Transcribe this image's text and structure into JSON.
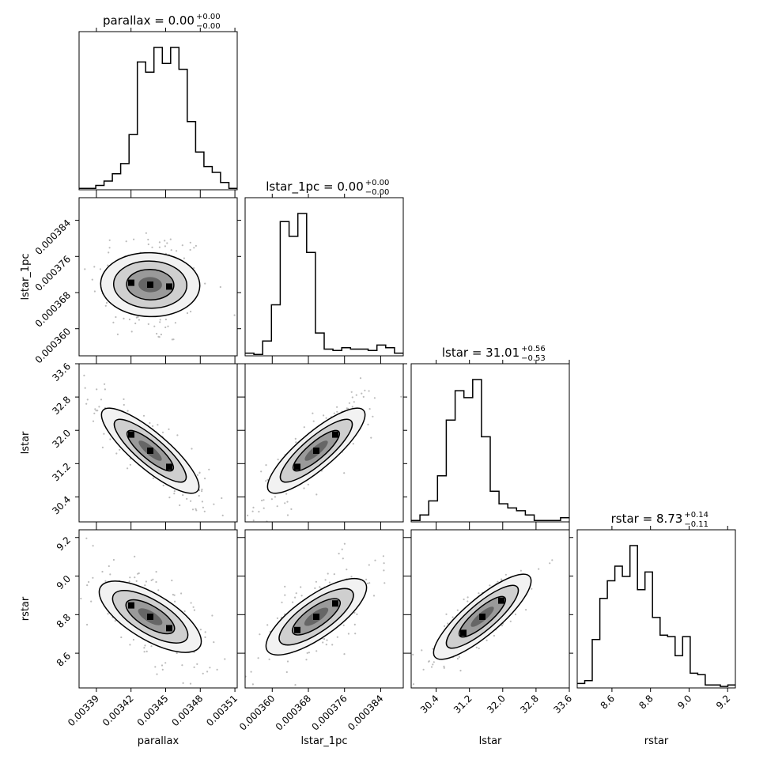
{
  "chart_data": {
    "type": "corner",
    "parameters": [
      "parallax",
      "lstar_1pc",
      "lstar",
      "rstar"
    ],
    "axis_labels": [
      "parallax",
      "lstar_1pc",
      "lstar",
      "rstar"
    ],
    "titles": [
      {
        "param": "parallax",
        "text": "parallax = 0.00",
        "plus": "+0.00",
        "minus": "−0.00"
      },
      {
        "param": "lstar_1pc",
        "text": "lstar_1pc = 0.00",
        "plus": "+0.00",
        "minus": "−0.00"
      },
      {
        "param": "lstar",
        "text": "lstar = 31.01",
        "plus": "+0.56",
        "minus": "−0.53"
      },
      {
        "param": "rstar",
        "text": "rstar = 8.73",
        "plus": "+0.14",
        "minus": "−0.11"
      }
    ],
    "ranges": [
      [
        0.003375,
        0.003512
      ],
      [
        0.000354,
        0.000389
      ],
      [
        29.8,
        33.6
      ],
      [
        8.42,
        9.24
      ]
    ],
    "ticks": [
      {
        "values": [
          0.00339,
          0.00342,
          0.00345,
          0.00348,
          0.00351
        ],
        "labels": [
          "0.00339",
          "0.00342",
          "0.00345",
          "0.00348",
          "0.00351"
        ]
      },
      {
        "values": [
          0.00036,
          0.000368,
          0.000376,
          0.000384
        ],
        "labels": [
          "0.000360",
          "0.000368",
          "0.000376",
          "0.000384"
        ]
      },
      {
        "values": [
          30.4,
          31.2,
          32.0,
          32.8,
          33.6
        ],
        "labels": [
          "30.4",
          "31.2",
          "32.0",
          "32.8",
          "33.6"
        ]
      },
      {
        "values": [
          8.6,
          8.8,
          9.0,
          9.2
        ],
        "labels": [
          "8.6",
          "8.8",
          "9.0",
          "9.2"
        ]
      }
    ],
    "histograms": [
      {
        "param": "parallax",
        "counts": [
          1,
          1,
          3,
          6,
          11,
          18,
          38,
          88,
          81,
          98,
          87,
          98,
          83,
          47,
          26,
          16,
          12,
          5,
          1
        ]
      },
      {
        "param": "lstar_1pc",
        "counts": [
          2,
          1,
          11,
          38,
          100,
          89,
          106,
          77,
          17,
          5,
          4,
          6,
          5,
          5,
          4,
          8,
          6,
          2
        ]
      },
      {
        "param": "lstar",
        "counts": [
          1,
          5,
          15,
          33,
          73,
          94,
          89,
          102,
          61,
          22,
          13,
          10,
          8,
          5,
          1,
          1,
          1,
          3
        ]
      },
      {
        "param": "rstar",
        "counts": [
          3,
          5,
          33,
          61,
          73,
          83,
          76,
          97,
          67,
          79,
          48,
          36,
          35,
          22,
          35,
          10,
          9,
          2,
          2,
          1,
          2
        ]
      }
    ],
    "scatter_pairs": [
      {
        "x": "parallax",
        "y": "lstar_1pc",
        "rho": -0.1
      },
      {
        "x": "parallax",
        "y": "lstar",
        "rho": -0.85
      },
      {
        "x": "lstar_1pc",
        "y": "lstar",
        "rho": 0.85
      },
      {
        "x": "parallax",
        "y": "rstar",
        "rho": -0.6
      },
      {
        "x": "lstar_1pc",
        "y": "rstar",
        "rho": 0.7
      },
      {
        "x": "lstar",
        "y": "rstar",
        "rho": 0.85
      }
    ],
    "colors": {
      "line": "#000000",
      "fill": "#555555",
      "points": "#bbbbbb"
    }
  }
}
